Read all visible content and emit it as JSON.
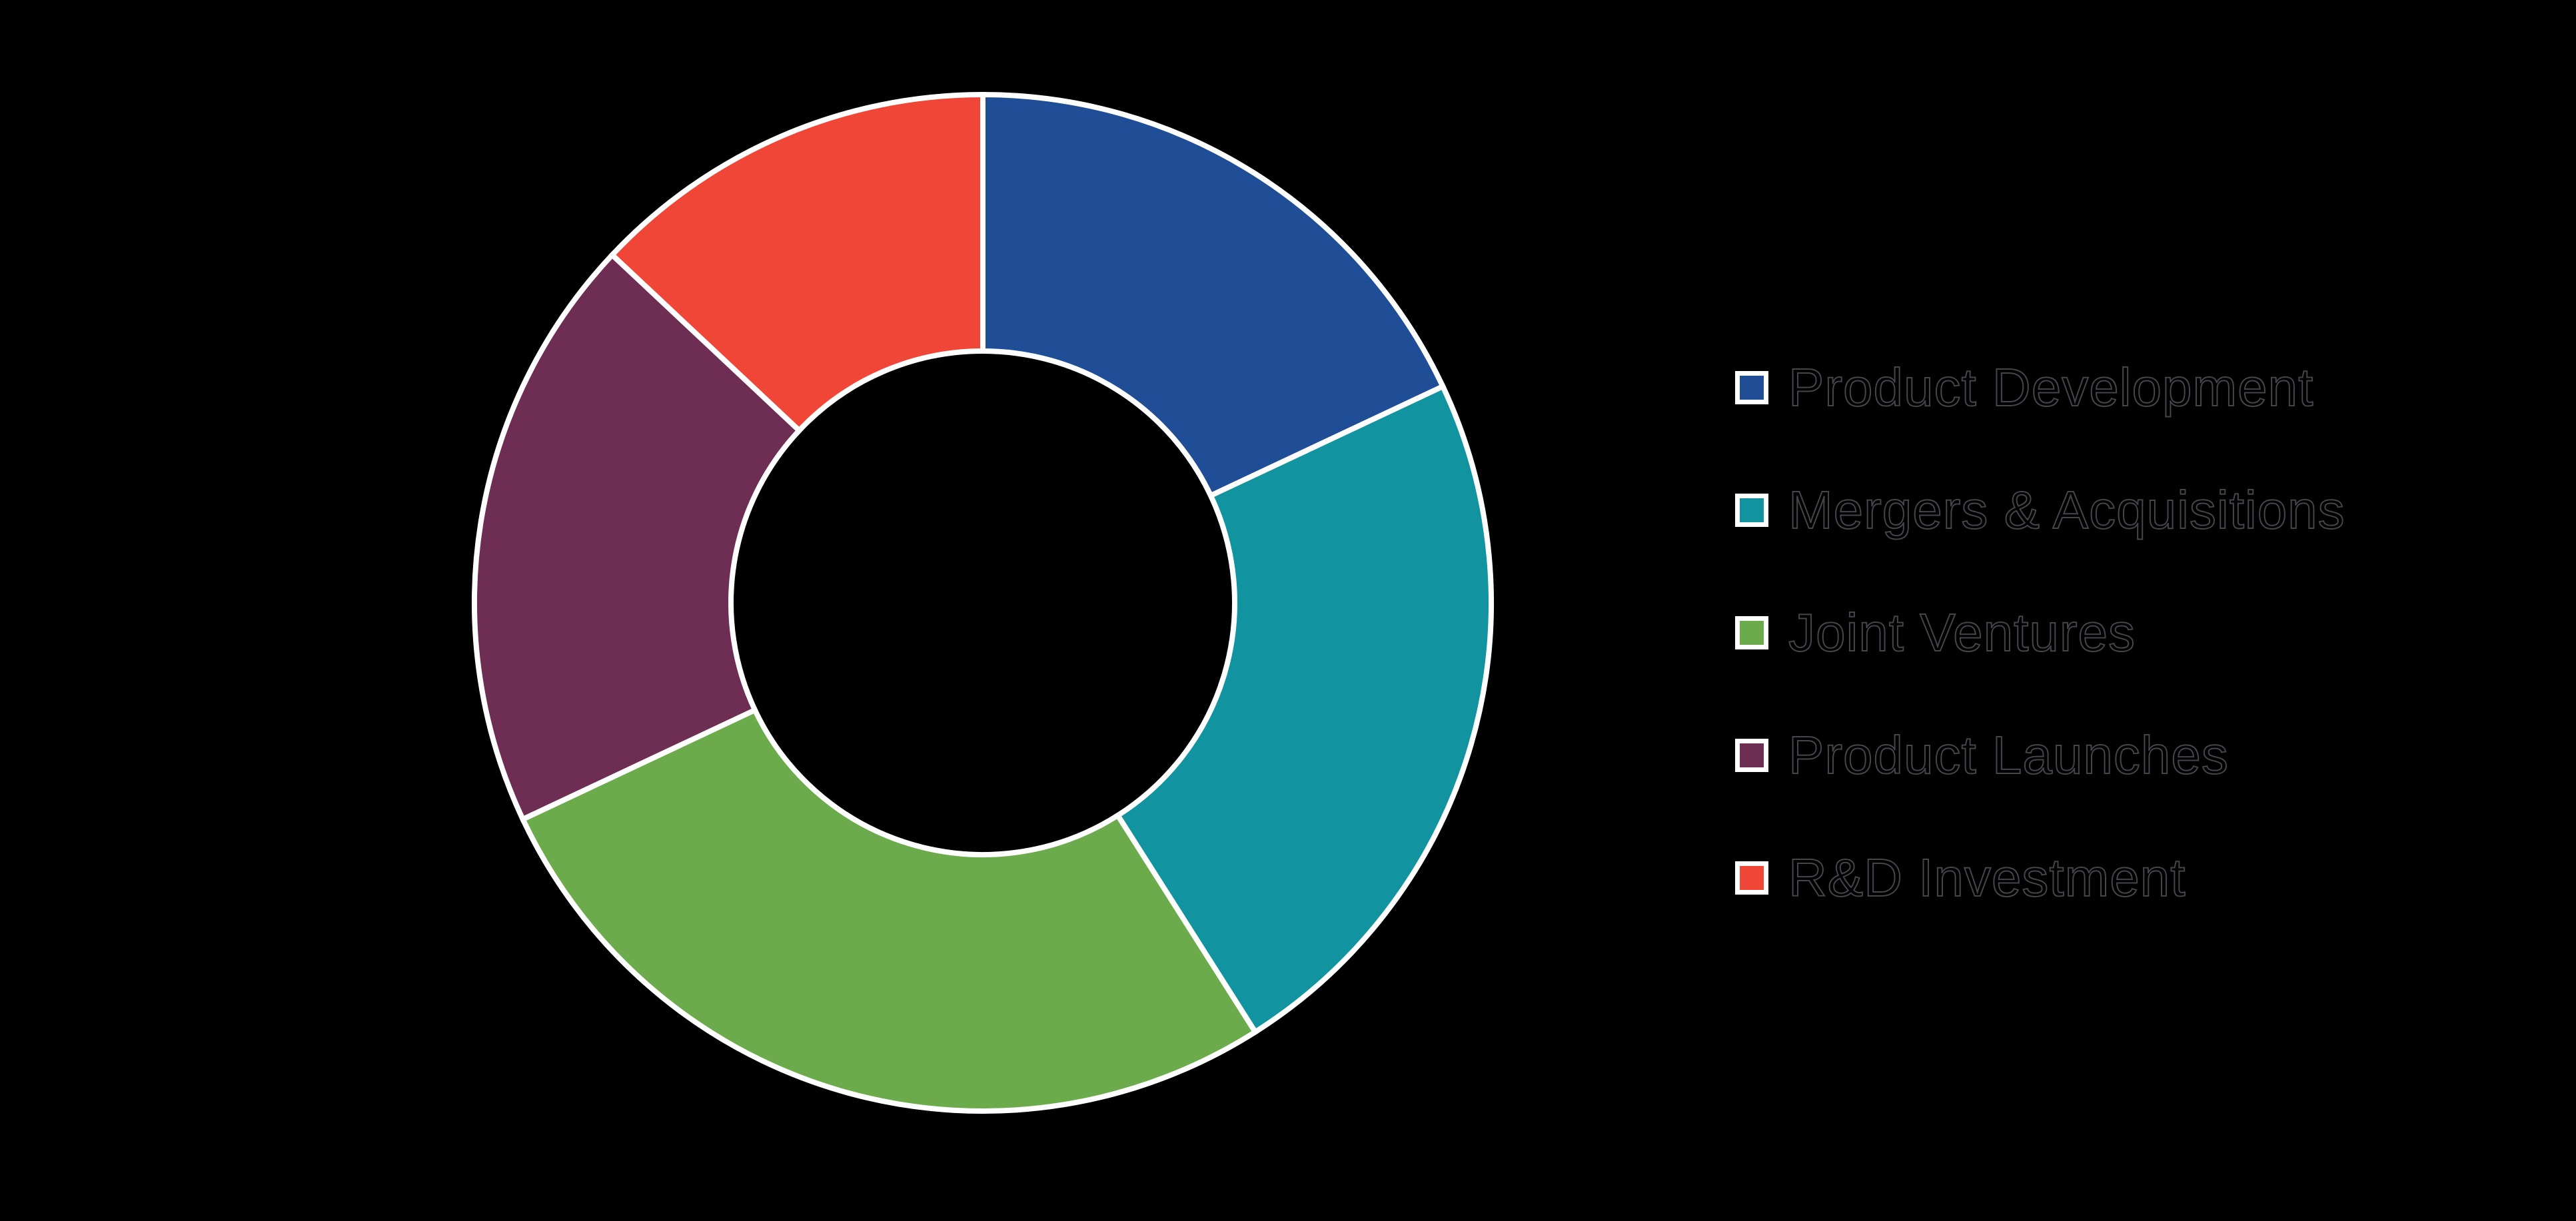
{
  "background_color": "#000000",
  "chart_data": {
    "type": "pie",
    "subtype": "donut",
    "title": "",
    "categories": [
      "Product Development",
      "Mergers & Acquisitions",
      "Joint Ventures",
      "Product Launches",
      "R&D Investment"
    ],
    "values": [
      18,
      23,
      27,
      19,
      13
    ],
    "unit": "%",
    "colors": [
      "#1F4E96",
      "#1193A0",
      "#6BAB4B",
      "#6E2D53",
      "#EF4637"
    ],
    "slice_border_color": "#FFFFFF",
    "donut_hole_ratio": 0.5,
    "start_angle_deg": 0,
    "direction": "clockwise",
    "legend_position": "right",
    "data_labels_shown": false
  }
}
